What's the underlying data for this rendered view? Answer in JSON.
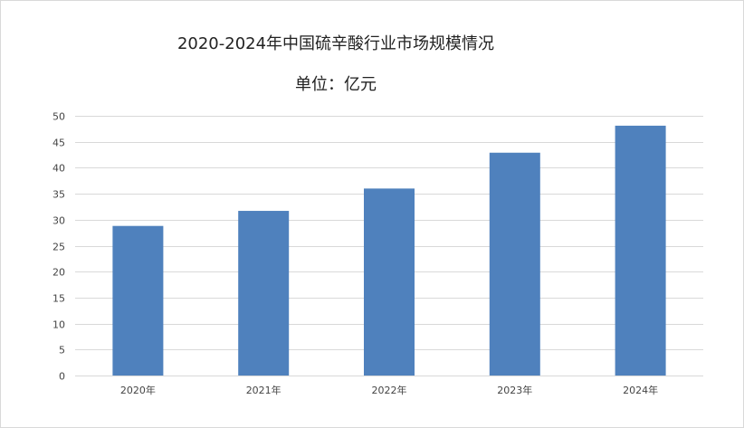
{
  "chart_data": {
    "type": "bar",
    "title": "2020-2024年中国硫辛酸行业市场规模情况",
    "subtitle": "单位：亿元",
    "categories": [
      "2020年",
      "2021年",
      "2022年",
      "2023年",
      "2024年"
    ],
    "values": [
      28.8,
      31.7,
      36.0,
      42.9,
      48.1
    ],
    "ylim": [
      0,
      50
    ],
    "yticks": [
      0,
      5,
      10,
      15,
      20,
      25,
      30,
      35,
      40,
      45,
      50
    ],
    "grid": true,
    "legend": "none",
    "bar_color": "#4f81bd",
    "grid_color": "#d9d9d9"
  }
}
